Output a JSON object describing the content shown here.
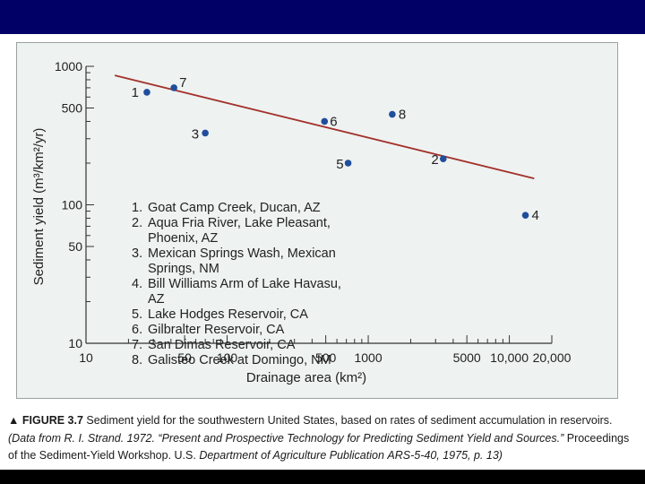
{
  "chart_data": {
    "type": "scatter",
    "xscale": "log",
    "yscale": "log",
    "xlim": [
      10,
      20000
    ],
    "ylim": [
      10,
      1000
    ],
    "xlabel": "Drainage area (km²)",
    "ylabel": "Sediment yield (m³/km²/yr)",
    "x_tick_labels": [
      "10",
      "50",
      "100",
      "500",
      "1000",
      "5000",
      "10,000",
      "20,000"
    ],
    "x_tick_values": [
      10,
      50,
      100,
      500,
      1000,
      5000,
      10000,
      20000
    ],
    "y_tick_labels": [
      "10",
      "50",
      "100",
      "500",
      "1000"
    ],
    "y_tick_values": [
      10,
      50,
      100,
      500,
      1000
    ],
    "points": [
      {
        "label": "1",
        "x": 27,
        "y": 650
      },
      {
        "label": "2",
        "x": 3400,
        "y": 215
      },
      {
        "label": "3",
        "x": 70,
        "y": 330
      },
      {
        "label": "4",
        "x": 13000,
        "y": 84
      },
      {
        "label": "5",
        "x": 720,
        "y": 200
      },
      {
        "label": "6",
        "x": 490,
        "y": 400
      },
      {
        "label": "7",
        "x": 42,
        "y": 700
      },
      {
        "label": "8",
        "x": 1480,
        "y": 450
      }
    ],
    "trend_line": {
      "x": [
        16,
        15000
      ],
      "y": [
        860,
        155
      ]
    },
    "marker_color": "#1f4e9c",
    "line_color": "#a3302a",
    "legend": [
      {
        "num": "1.",
        "text": "Goat Camp Creek, Ducan, AZ"
      },
      {
        "num": "2.",
        "text": "Aqua Fria River, Lake Pleasant, Phoenix, AZ"
      },
      {
        "num": "3.",
        "text": "Mexican Springs Wash, Mexican Springs, NM"
      },
      {
        "num": "4.",
        "text": "Bill Williams Arm of Lake Havasu, AZ"
      },
      {
        "num": "5.",
        "text": "Lake Hodges Reservoir, CA"
      },
      {
        "num": "6.",
        "text": "Gilbralter Reservoir, CA"
      },
      {
        "num": "7.",
        "text": "San Dimas Reservoir, CA"
      },
      {
        "num": "8.",
        "text": "Galisteo Creek at Domingo, NM"
      }
    ]
  },
  "caption": {
    "marker": "▲",
    "figure_label": "FIGURE 3.7",
    "description": "Sediment yield for the southwestern United States, based on rates of sediment accumulation in reservoirs.",
    "source_prefix": "(Data from R. I. Strand. 1972. “Present and Prospective Technology for Predicting Sediment Yield and Sources.”",
    "source_middle": "Proceedings of the Sediment-Yield Workshop. U.S.",
    "source_publication": "Department of Agriculture Publication",
    "source_end": "ARS-5-40, 1975, p. 13)"
  },
  "colors": {
    "top_bar": "#000066",
    "bottom_bar": "#000000",
    "panel_background": "#eef2f1"
  }
}
